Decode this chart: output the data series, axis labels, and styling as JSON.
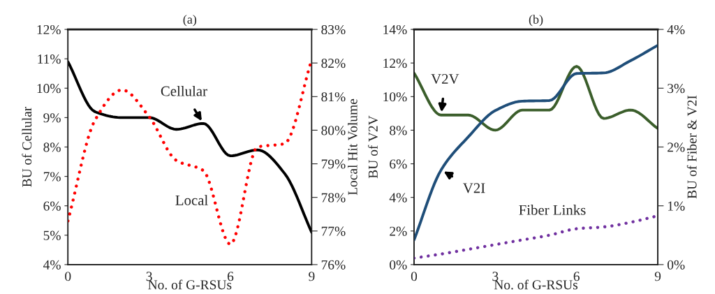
{
  "chart_data": [
    {
      "type": "line",
      "title": "(a)",
      "xlabel": "No. of G-RSUs",
      "ylabel": "BU of Cellular",
      "y2label": "Local Hit Volume",
      "x": [
        0,
        1,
        2,
        3,
        4,
        5,
        6,
        7,
        8,
        9
      ],
      "xlim": [
        0,
        9
      ],
      "xticks": [
        0,
        3,
        6,
        9
      ],
      "ylim": [
        4,
        12
      ],
      "yticks": [
        {
          "value": 4,
          "label": "4%"
        },
        {
          "value": 5,
          "label": "5%"
        },
        {
          "value": 6,
          "label": "6%"
        },
        {
          "value": 7,
          "label": "7%"
        },
        {
          "value": 8,
          "label": "8%"
        },
        {
          "value": 9,
          "label": "9%"
        },
        {
          "value": 10,
          "label": "10%"
        },
        {
          "value": 11,
          "label": "11%"
        },
        {
          "value": 12,
          "label": "12%"
        }
      ],
      "y2lim": [
        76,
        83
      ],
      "y2ticks": [
        {
          "value": 76,
          "label": "76%"
        },
        {
          "value": 77,
          "label": "77%"
        },
        {
          "value": 78,
          "label": "78%"
        },
        {
          "value": 79,
          "label": "79%"
        },
        {
          "value": 80,
          "label": "80%"
        },
        {
          "value": 81,
          "label": "81%"
        },
        {
          "value": 82,
          "label": "82%"
        },
        {
          "value": 83,
          "label": "83%"
        }
      ],
      "grid": false,
      "legend": false,
      "series": [
        {
          "name": "Cellular",
          "color": "#000000",
          "line_style": "solid",
          "values": [
            10.9,
            9.2,
            9.0,
            9.0,
            8.6,
            8.8,
            7.7,
            7.9,
            7.1,
            5.1
          ]
        },
        {
          "name": "Local",
          "color": "#ff0000",
          "line_style": "dotted",
          "axis": "y2",
          "values": [
            77.3,
            80.3,
            81.2,
            80.4,
            79.1,
            78.8,
            76.6,
            79.5,
            79.6,
            82.1
          ]
        }
      ]
    },
    {
      "type": "line",
      "title": "(b)",
      "xlabel": "No. of G-RSUs",
      "ylabel": "BU of V2V",
      "y2label": "BU of Fiber & V2I",
      "x": [
        0,
        1,
        2,
        3,
        4,
        5,
        6,
        7,
        8,
        9
      ],
      "xlim": [
        0,
        9
      ],
      "xticks": [
        0,
        3,
        6,
        9
      ],
      "ylim": [
        0,
        14
      ],
      "yticks": [
        {
          "value": 0,
          "label": "0%"
        },
        {
          "value": 2,
          "label": "2%"
        },
        {
          "value": 4,
          "label": "4%"
        },
        {
          "value": 6,
          "label": "6%"
        },
        {
          "value": 8,
          "label": "8%"
        },
        {
          "value": 10,
          "label": "10%"
        },
        {
          "value": 12,
          "label": "12%"
        },
        {
          "value": 14,
          "label": "14%"
        }
      ],
      "y2lim": [
        0,
        4
      ],
      "y2ticks": [
        {
          "value": 0,
          "label": "0%"
        },
        {
          "value": 1,
          "label": "1%"
        },
        {
          "value": 2,
          "label": "2%"
        },
        {
          "value": 3,
          "label": "3%"
        },
        {
          "value": 4,
          "label": "4%"
        }
      ],
      "grid": false,
      "legend": false,
      "series": [
        {
          "name": "V2V",
          "color": "#3b5e2b",
          "line_style": "solid",
          "values": [
            11.4,
            8.9,
            8.9,
            8.0,
            9.2,
            9.2,
            11.8,
            8.7,
            9.2,
            8.1
          ]
        },
        {
          "name": "V2I",
          "color": "#1f4e79",
          "line_style": "solid",
          "axis": "y2",
          "values": [
            0.42,
            1.61,
            2.17,
            2.62,
            2.78,
            2.79,
            3.25,
            3.26,
            3.47,
            3.73
          ]
        },
        {
          "name": "Fiber Links",
          "color": "#7030a0",
          "line_style": "dotted",
          "axis": "y2",
          "values": [
            0.11,
            0.18,
            0.26,
            0.34,
            0.42,
            0.5,
            0.61,
            0.64,
            0.72,
            0.83
          ]
        }
      ]
    }
  ]
}
